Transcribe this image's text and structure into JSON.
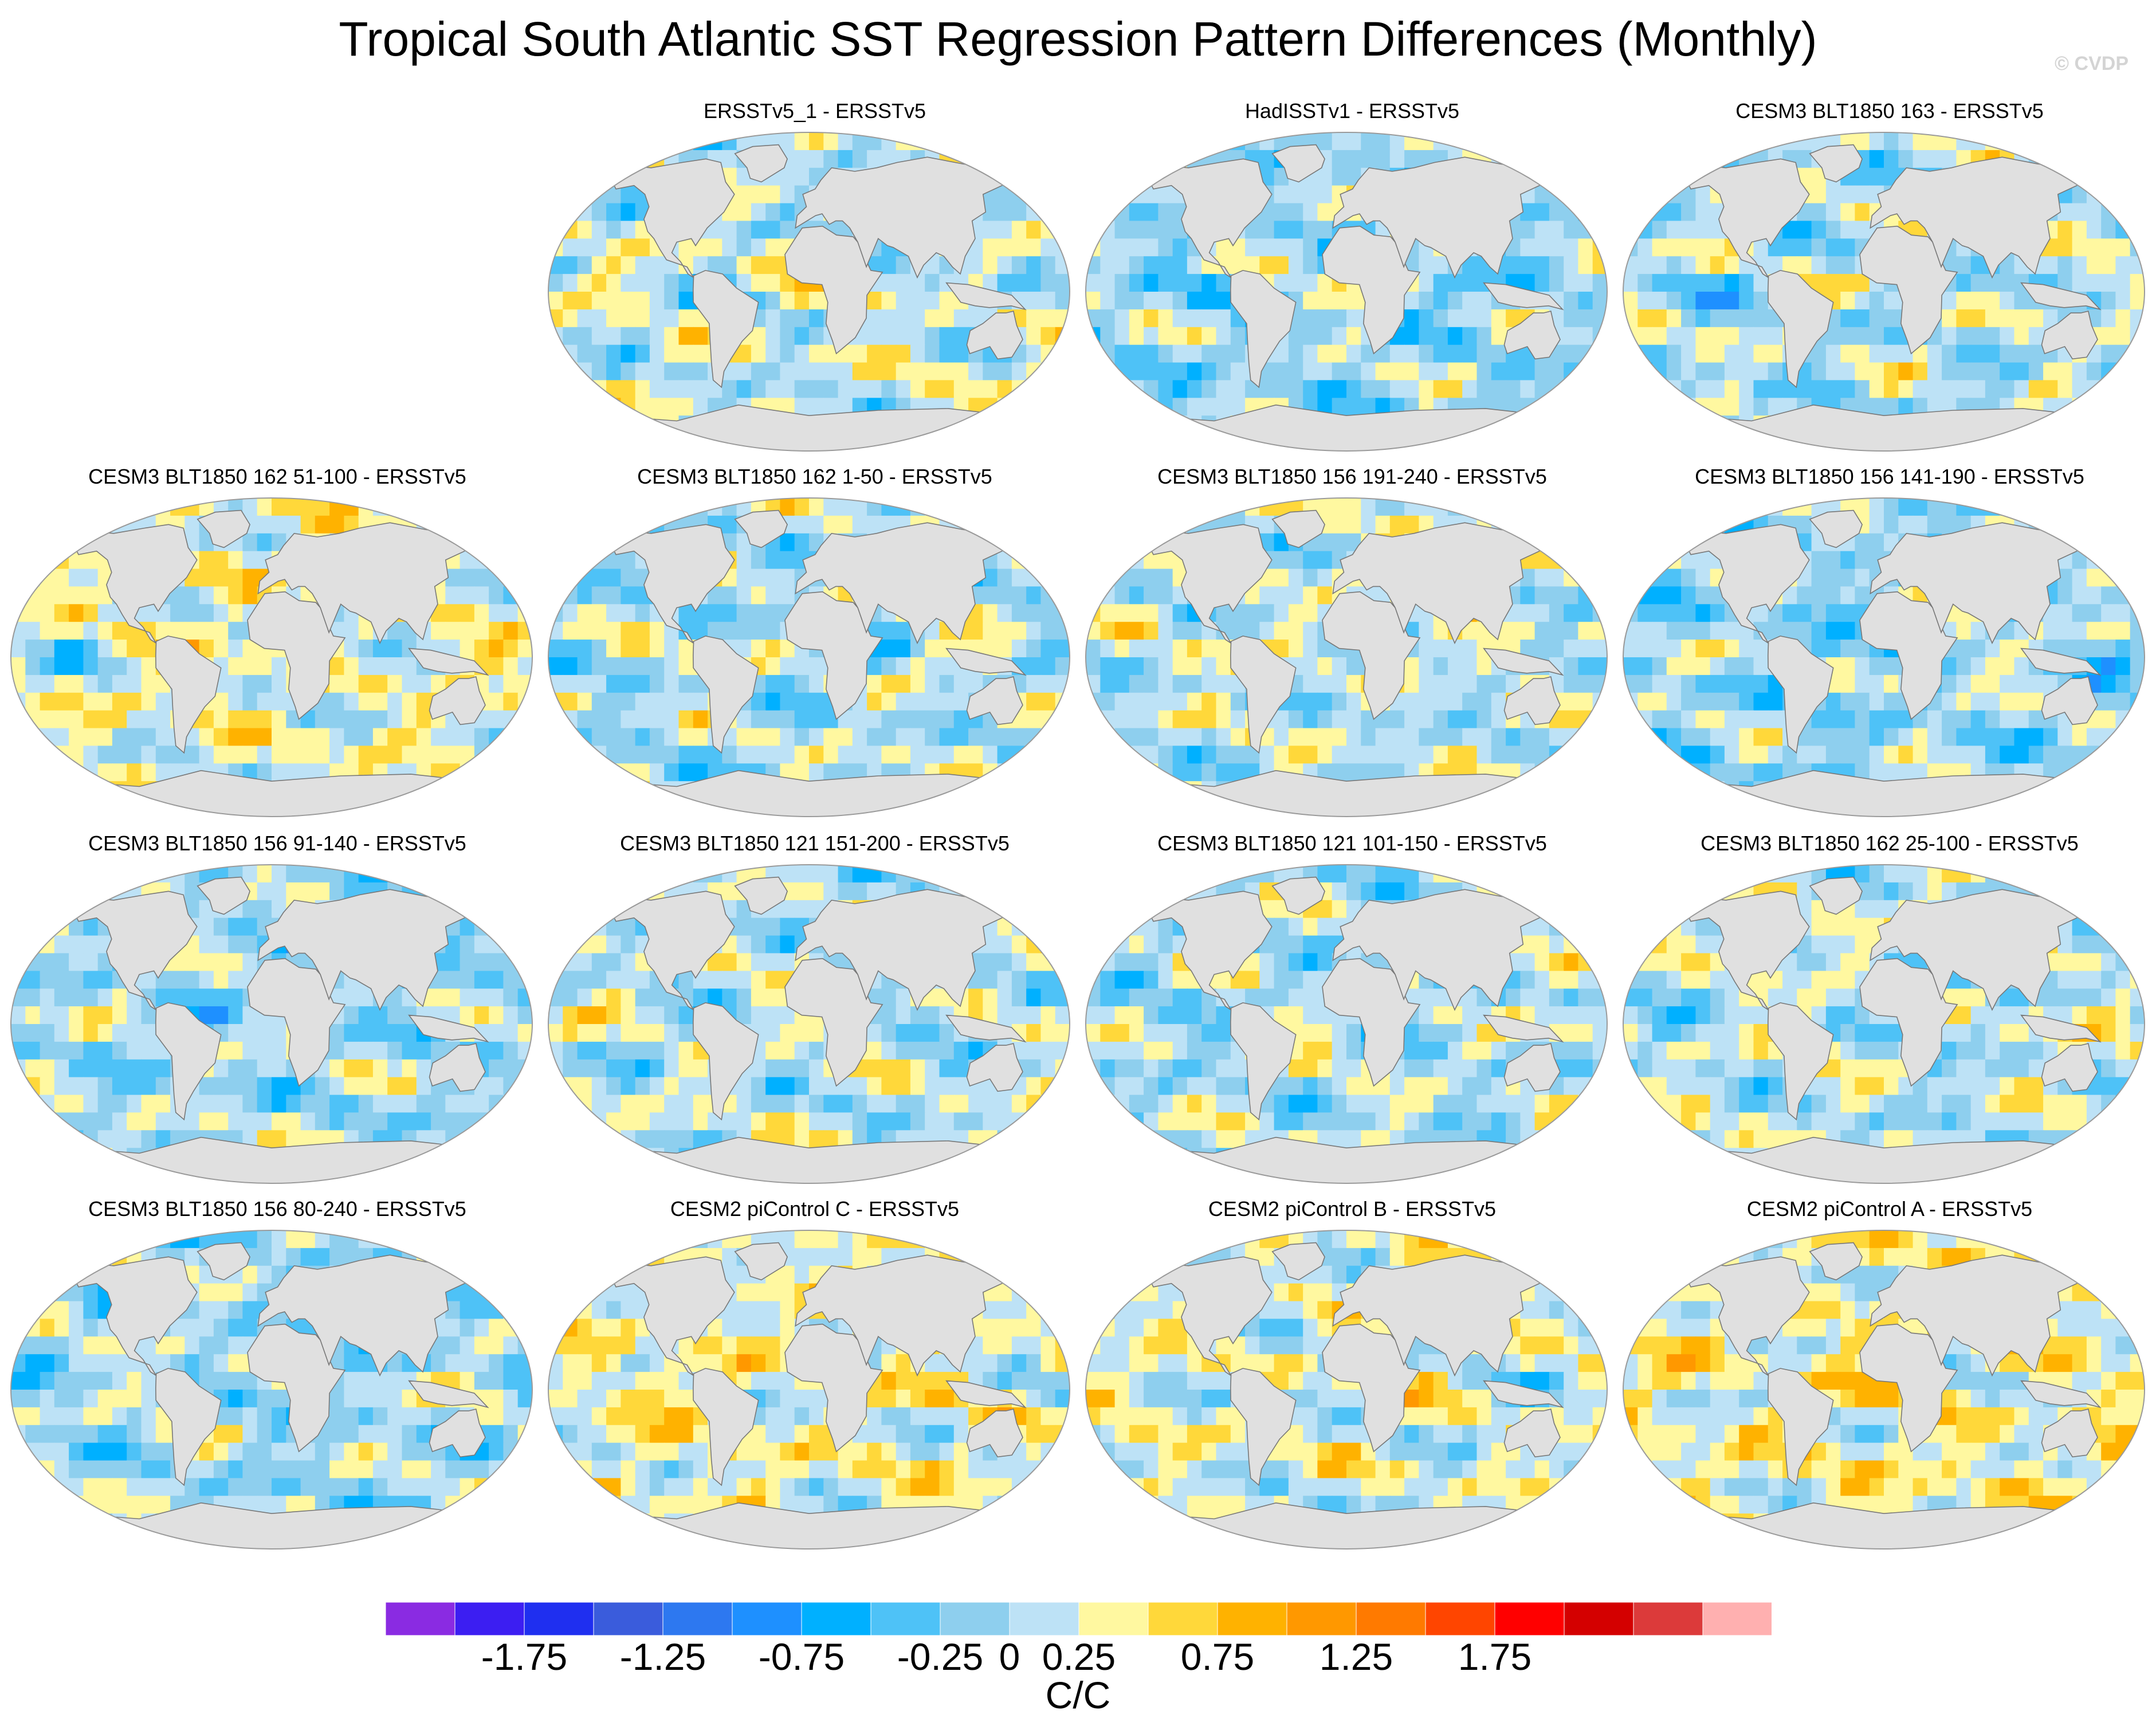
{
  "title": "Tropical South Atlantic SST Regression Pattern Differences (Monthly)",
  "credit": "© CVDP",
  "chart_data": {
    "type": "heatmap",
    "projection": "robinson",
    "units": "C/C",
    "land_color": "#e0e0e0",
    "colorbar": {
      "levels": [
        -2.0,
        -1.75,
        -1.5,
        -1.25,
        -1.0,
        -0.75,
        -0.5,
        -0.25,
        0,
        0.25,
        0.5,
        0.75,
        1.0,
        1.25,
        1.5,
        1.75,
        2.0
      ],
      "colors": [
        "#8a2be2",
        "#3c1ef2",
        "#1f2ff0",
        "#3a5cdc",
        "#2d78f0",
        "#1e90ff",
        "#00b0ff",
        "#4ec2f7",
        "#8ecfee",
        "#bde2f6",
        "#fff8a0",
        "#ffd83a",
        "#ffb200",
        "#ff9800",
        "#ff7a00",
        "#ff4500",
        "#ff0000",
        "#d40000",
        "#dc3a3a",
        "#ffb0b0"
      ],
      "tick_labels": [
        "-1.75",
        "-1.25",
        "-0.75",
        "-0.25",
        "0",
        "0.25",
        "0.75",
        "1.25",
        "1.75"
      ],
      "tick_values": [
        -1.75,
        -1.25,
        -0.75,
        -0.25,
        0,
        0.25,
        0.75,
        1.25,
        1.75
      ]
    },
    "panels": [
      {
        "title": "ERSSTv5_1 - ERSSTv5",
        "pattern_bias": 0.15,
        "seed": 3
      },
      {
        "title": "HadISSTv1 - ERSSTv5",
        "pattern_bias": -0.05,
        "seed": 7
      },
      {
        "title": "CESM3 BLT1850 163 - ERSSTv5",
        "pattern_bias": 0.05,
        "seed": 11
      },
      {
        "title": "CESM3 BLT1850 162 51-100 - ERSSTv5",
        "pattern_bias": 0.25,
        "seed": 13
      },
      {
        "title": "CESM3 BLT1850 162 1-50 - ERSSTv5",
        "pattern_bias": 0.05,
        "seed": 17
      },
      {
        "title": "CESM3 BLT1850 156 191-240 - ERSSTv5",
        "pattern_bias": 0.1,
        "seed": 19
      },
      {
        "title": "CESM3 BLT1850 156 141-190 - ERSSTv5",
        "pattern_bias": -0.05,
        "seed": 23
      },
      {
        "title": "CESM3 BLT1850 156 91-140 - ERSSTv5",
        "pattern_bias": 0.0,
        "seed": 29
      },
      {
        "title": "CESM3 BLT1850 121 151-200 - ERSSTv5",
        "pattern_bias": 0.1,
        "seed": 31
      },
      {
        "title": "CESM3 BLT1850 121 101-150 - ERSSTv5",
        "pattern_bias": 0.05,
        "seed": 37
      },
      {
        "title": "CESM3 BLT1850 162 25-100 - ERSSTv5",
        "pattern_bias": 0.1,
        "seed": 41
      },
      {
        "title": "CESM3 BLT1850 156 80-240 - ERSSTv5",
        "pattern_bias": 0.0,
        "seed": 43
      },
      {
        "title": "CESM2 piControl C - ERSSTv5",
        "pattern_bias": 0.3,
        "seed": 47
      },
      {
        "title": "CESM2 piControl B - ERSSTv5",
        "pattern_bias": 0.2,
        "seed": 53
      },
      {
        "title": "CESM2 piControl A - ERSSTv5",
        "pattern_bias": 0.35,
        "seed": 59
      }
    ]
  }
}
